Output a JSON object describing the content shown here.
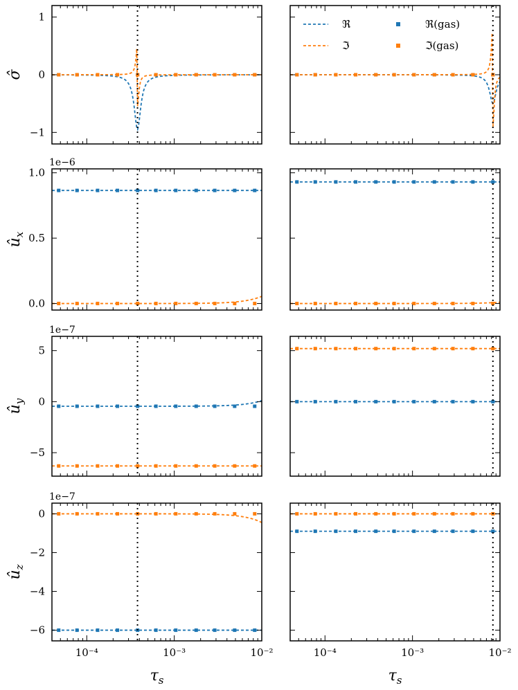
{
  "chart_data": {
    "type": "line",
    "colors": {
      "real": "#1f77b4",
      "imag": "#ff7f0e",
      "vline": "#000000"
    },
    "legend": {
      "placement": "top-right panel, upper area",
      "entries": [
        {
          "label": "ℜ",
          "style": "dashed",
          "color": "#1f77b4"
        },
        {
          "label": "ℑ",
          "style": "dashed",
          "color": "#ff7f0e"
        },
        {
          "label": "ℜ(gas)",
          "style": "square markers",
          "color": "#1f77b4"
        },
        {
          "label": "ℑ(gas)",
          "style": "square markers",
          "color": "#ff7f0e"
        }
      ]
    },
    "x_scale": "log",
    "xlim": [
      4e-05,
      0.01
    ],
    "xlabel": "τ_s",
    "xtick_labels": [
      "10⁻⁴",
      "10⁻³",
      "10⁻²"
    ],
    "vlines": [
      0.00038,
      0.0083
    ],
    "columns": [
      {
        "vline": 0.00038
      },
      {
        "vline": 0.0083
      }
    ],
    "rows": [
      {
        "ylabel": "σ̂",
        "exponent": "",
        "ylim": [
          -1.2,
          1.2
        ],
        "yticks": [
          -1,
          0,
          1
        ],
        "ytick_labels": [
          "−1",
          "0",
          "1"
        ],
        "panels": [
          {
            "real_type": "resonance",
            "real_amp": -0.95,
            "imag_type": "resonance",
            "imag_amp": 0.55,
            "center": 0.00038,
            "real_gas": 0,
            "imag_gas": 0
          },
          {
            "real_type": "resonance",
            "real_amp": -0.5,
            "imag_type": "resonance",
            "imag_amp": 0.9,
            "center": 0.0083,
            "real_gas": 0,
            "imag_gas": 0
          }
        ]
      },
      {
        "ylabel": "û_x",
        "exponent": "1e−6",
        "ylim": [
          -0.05,
          1.03
        ],
        "yticks": [
          0,
          0.5,
          1
        ],
        "ytick_labels": [
          "0.0",
          "0.5",
          "1.0"
        ],
        "panels": [
          {
            "real_type": "const",
            "real_value": 0.865,
            "imag_type": "rise",
            "imag_value": 0.0,
            "imag_end": 0.055,
            "real_gas": 0.865,
            "imag_gas": 0.0
          },
          {
            "real_type": "const",
            "real_value": 0.93,
            "imag_type": "rise",
            "imag_value": 0.0,
            "imag_end": 0.01,
            "real_gas": 0.93,
            "imag_gas": 0.0
          }
        ]
      },
      {
        "ylabel": "û_y",
        "exponent": "1e−7",
        "ylim": [
          -7.3,
          6.4
        ],
        "yticks": [
          -5,
          0,
          5
        ],
        "ytick_labels": [
          "−5",
          "0",
          "5"
        ],
        "panels": [
          {
            "real_type": "rise",
            "real_value": -0.45,
            "real_end": 0.1,
            "imag_type": "const",
            "imag_value": -6.3,
            "real_gas": -0.45,
            "imag_gas": -6.3
          },
          {
            "real_type": "const",
            "real_value": 0.0,
            "imag_type": "const",
            "imag_value": 5.2,
            "real_gas": 0.0,
            "imag_gas": 5.2
          }
        ]
      },
      {
        "ylabel": "û_z",
        "exponent": "1e−7",
        "ylim": [
          -6.55,
          0.55
        ],
        "yticks": [
          -6,
          -4,
          -2,
          0
        ],
        "ytick_labels": [
          "−6",
          "−4",
          "−2",
          "0"
        ],
        "panels": [
          {
            "real_type": "const",
            "real_value": -6.0,
            "imag_type": "drop",
            "imag_value": 0.0,
            "imag_end": -0.45,
            "real_gas": -6.0,
            "imag_gas": 0.0
          },
          {
            "real_type": "const",
            "real_value": -0.9,
            "imag_type": "const",
            "imag_value": 0.0,
            "real_gas": -0.9,
            "imag_gas": 0.0
          }
        ]
      }
    ]
  }
}
